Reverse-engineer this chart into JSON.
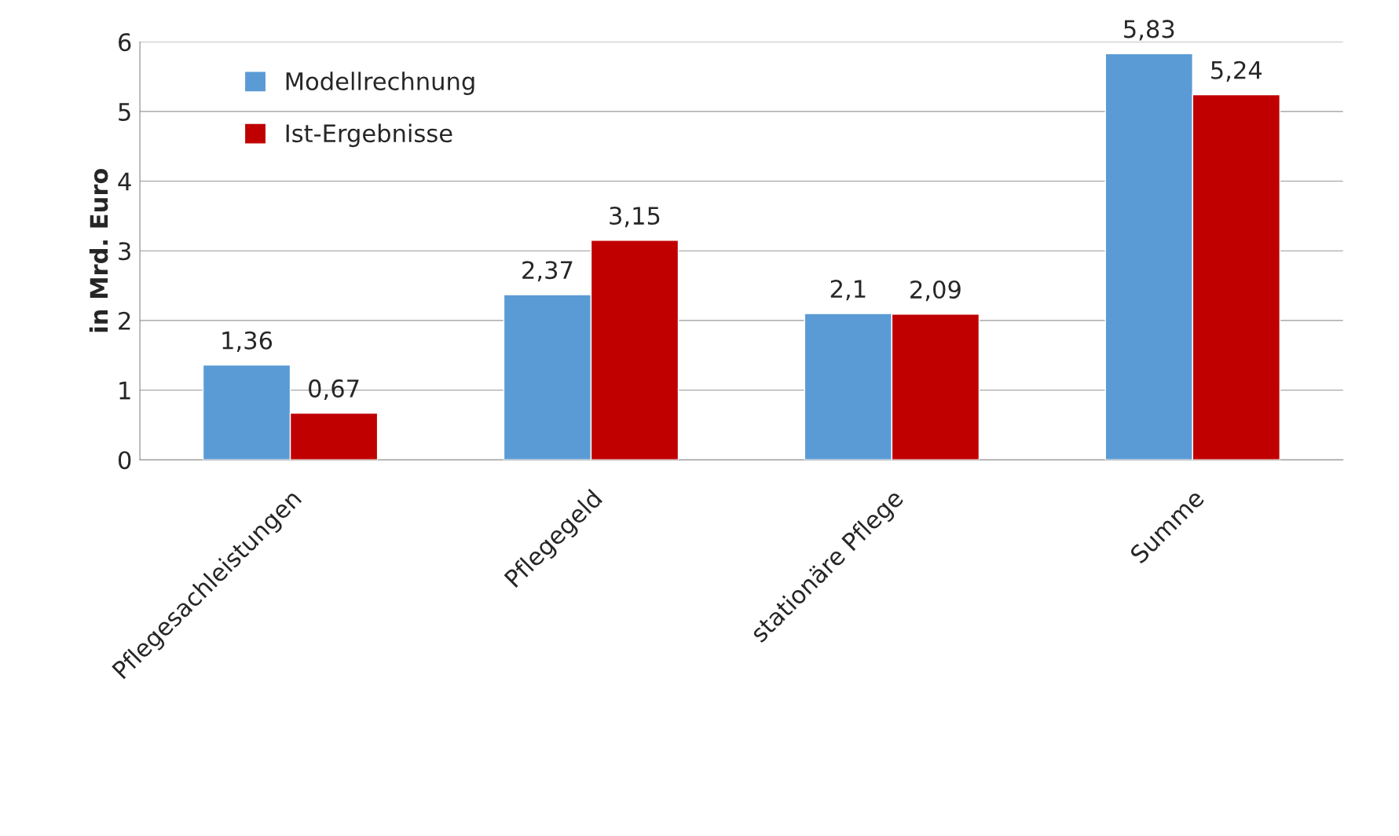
{
  "chart_data": {
    "type": "bar",
    "ylabel": "in Mrd. Euro",
    "categories": [
      "Pflegesachleistungen",
      "Pflegegeld",
      "stationäre Pflege",
      "Summe"
    ],
    "series": [
      {
        "name": "Modellrechnung",
        "color": "#5b9bd5",
        "values": [
          1.36,
          2.37,
          2.1,
          5.83
        ],
        "value_labels": [
          "1,36",
          "2,37",
          "2,1",
          "5,83"
        ]
      },
      {
        "name": "Ist-Ergebnisse",
        "color": "#c00000",
        "values": [
          0.67,
          3.15,
          2.09,
          5.24
        ],
        "value_labels": [
          "0,67",
          "3,15",
          "2,09",
          "5,24"
        ]
      }
    ],
    "ylim": [
      0,
      6
    ],
    "yticks": [
      0,
      1,
      2,
      3,
      4,
      5,
      6
    ],
    "grid": "y",
    "legend": "top left"
  }
}
